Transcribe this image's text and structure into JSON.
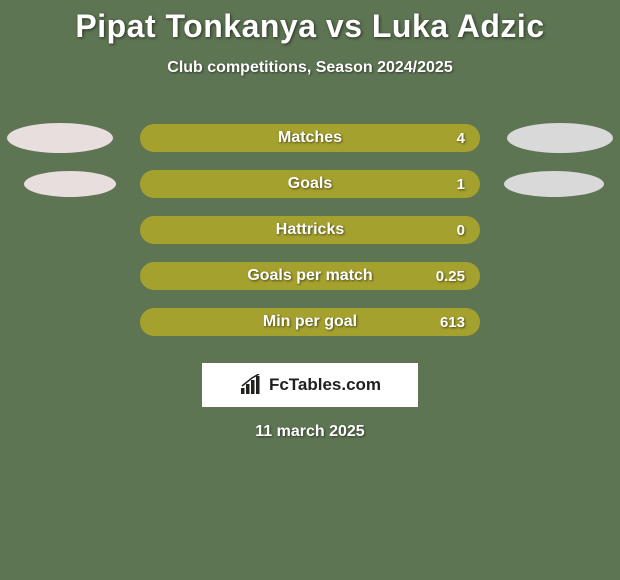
{
  "background_color": "#5e7553",
  "title": "Pipat Tonkanya vs Luka Adzic",
  "title_color": "#ffffff",
  "title_fontsize": 32,
  "subtitle": "Club competitions, Season 2024/2025",
  "subtitle_color": "#ffffff",
  "subtitle_fontsize": 16,
  "ellipse_left_color": "#e9dede",
  "ellipse_right_color": "#d9d9d9",
  "bar_track_color": "#a5a12e",
  "bar_fill_color": "#a5a12e",
  "label_color": "#ffffff",
  "value_color": "#ffffff",
  "stats": [
    {
      "label": "Matches",
      "value": "4",
      "fill_pct": 100,
      "show_ellipses": true
    },
    {
      "label": "Goals",
      "value": "1",
      "fill_pct": 100,
      "show_ellipses": true
    },
    {
      "label": "Hattricks",
      "value": "0",
      "fill_pct": 100,
      "show_ellipses": false
    },
    {
      "label": "Goals per match",
      "value": "0.25",
      "fill_pct": 100,
      "show_ellipses": false
    },
    {
      "label": "Min per goal",
      "value": "613",
      "fill_pct": 100,
      "show_ellipses": false
    }
  ],
  "brand": {
    "box_bg": "#ffffff",
    "icon_color": "#20201f",
    "text": "FcTables.com",
    "text_color": "#20201f",
    "text_fontsize": 17
  },
  "date": "11 march 2025",
  "date_color": "#ffffff",
  "date_fontsize": 16
}
